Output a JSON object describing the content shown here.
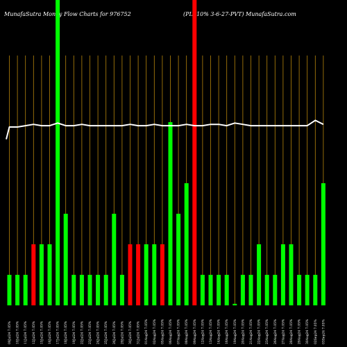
{
  "header": {
    "left_title": "MunafaSutra  Money Flow  Charts for 976752",
    "right_title": "(PL -10% 3-6-27-PVT) MunafaSutra.com"
  },
  "colors": {
    "background": "#000000",
    "up": "#00ff00",
    "down": "#ff0000",
    "vertical_grid": "#b8860b",
    "line": "#ffffff"
  },
  "chart_data": {
    "type": "bar",
    "title": "",
    "xlabel": "",
    "ylabel": "",
    "grid": "vertical",
    "ylim": [
      0,
      10
    ],
    "line_ylim": [
      0,
      10
    ],
    "categories": [
      "09Jul24 7.05%",
      "10Jul24 7.05%",
      "11Jul24 7.05%",
      "12Jul24 7.05%",
      "15Jul24 7.05%",
      "16Jul24 7.05%",
      "17Jul24 7.05%",
      "18Jul24 7.05%",
      "19Jul24 7.05%",
      "22Jul24 7.05%",
      "23Jul24 7.05%",
      "24Jul24 7.05%",
      "25Jul24 7.05%",
      "26Jul24 7.05%",
      "29Jul24 7.05%",
      "30Jul24 7.05%",
      "31Jul24 7.05%",
      "01Aug24 7.05%",
      "02Aug24 7.05%",
      "05Aug24 7.05%",
      "06Aug24 7.05%",
      "07Aug24 7.05%",
      "08Aug24 7.05%",
      "09Aug24 7.05%",
      "12Aug24 7.05%",
      "13Aug24 7.05%",
      "14Aug24 7.05%",
      "16Aug24 7.05%",
      "19Aug24 7.05%",
      "20Aug24 7.05%",
      "21Aug24 7.05%",
      "22Aug24 7.05%",
      "23Aug24 7.05%",
      "26Aug24 7.05%",
      "27Aug24 7.05%",
      "28Aug24 7.05%",
      "29Aug24 7.05%",
      "30Aug24 7.05%",
      "02Sep24 7.05%",
      "03Sep24 7.05%"
    ],
    "values": [
      1,
      1,
      1,
      2,
      2,
      2,
      10,
      3,
      1,
      1,
      1,
      1,
      1,
      3,
      1,
      2,
      2,
      2,
      2,
      2,
      6,
      3,
      4,
      10,
      1,
      1,
      1,
      1,
      0.05,
      1,
      1,
      2,
      1,
      1,
      2,
      2,
      1,
      1,
      1,
      4
    ],
    "colors": [
      "up",
      "up",
      "up",
      "down",
      "up",
      "up",
      "up",
      "up",
      "up",
      "up",
      "up",
      "up",
      "up",
      "up",
      "up",
      "down",
      "down",
      "up",
      "up",
      "down",
      "up",
      "up",
      "up",
      "down",
      "up",
      "up",
      "up",
      "up",
      "up",
      "up",
      "up",
      "up",
      "up",
      "up",
      "up",
      "up",
      "up",
      "up",
      "up",
      "up"
    ],
    "line": [
      5,
      5,
      5.05,
      5.1,
      5.05,
      5.05,
      5.15,
      5.05,
      5.05,
      5.1,
      5.05,
      5.05,
      5.05,
      5.05,
      5.05,
      5.1,
      5.05,
      5.05,
      5.1,
      5.05,
      5.05,
      5.05,
      5.1,
      5.05,
      5.05,
      5.1,
      5.1,
      5.05,
      5.15,
      5.1,
      5.05,
      5.05,
      5.05,
      5.05,
      5.05,
      5.05,
      5.05,
      5.05,
      5.25,
      5.1
    ],
    "line_start": 4.8
  }
}
